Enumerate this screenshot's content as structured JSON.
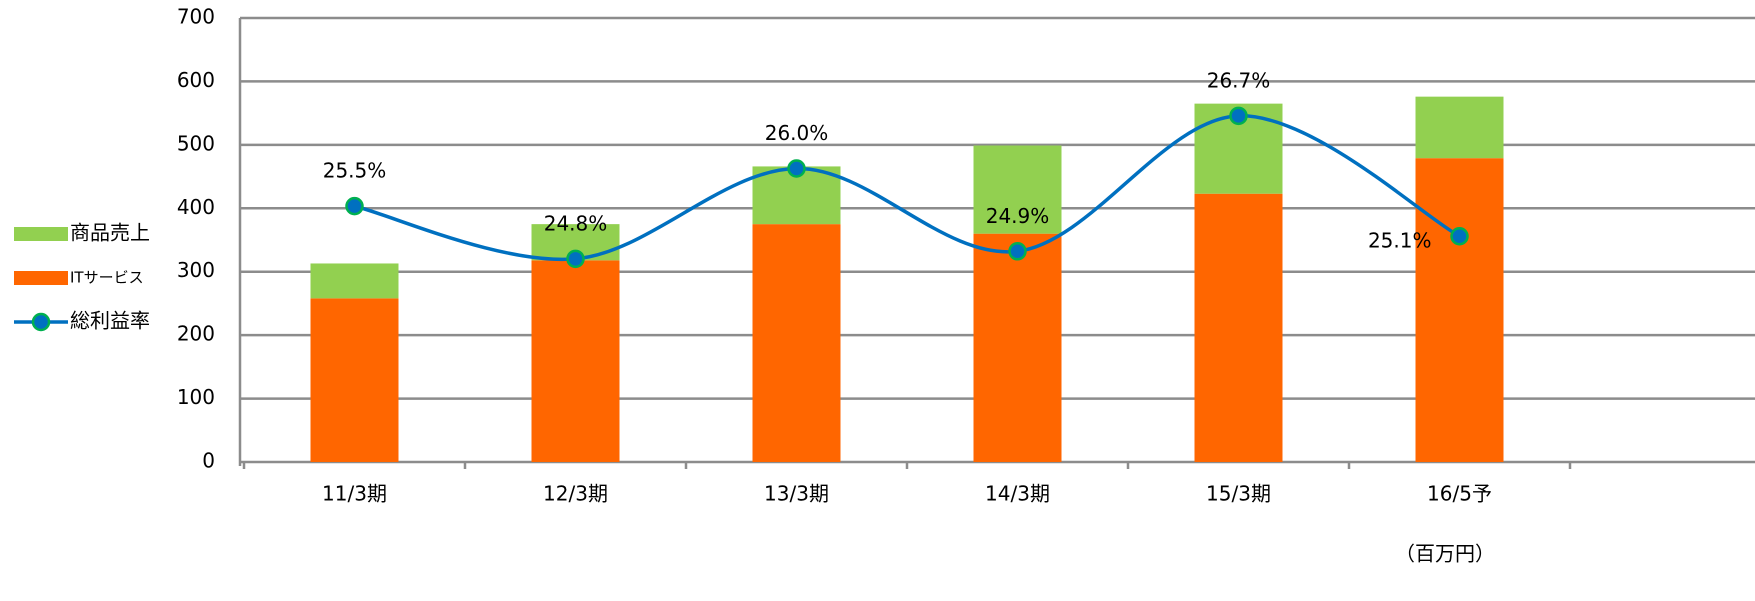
{
  "chart_data": {
    "type": "bar-line",
    "categories": [
      "11/3期",
      "12/3期",
      "13/3期",
      "14/3期",
      "15/3期",
      "16/5予"
    ],
    "series": [
      {
        "name": "ITサービス",
        "type": "bar",
        "color": "#ff6600",
        "values": [
          258,
          318,
          375,
          360,
          423,
          479
        ]
      },
      {
        "name": "商品売上",
        "type": "bar",
        "color": "#92d050",
        "values": [
          55,
          57,
          91,
          139,
          142,
          97
        ]
      },
      {
        "name": "総利益率",
        "type": "line",
        "axis": "y2",
        "color": "#0070c0",
        "marker_edge": "#00b050",
        "values": [
          25.5,
          24.8,
          26.0,
          24.9,
          26.7,
          25.1
        ],
        "value_labels": [
          "25.5%",
          "24.8%",
          "26.0%",
          "24.9%",
          "26.7%",
          "25.1%"
        ]
      }
    ],
    "ylim": [
      0,
      700
    ],
    "yticks": [
      0,
      100,
      200,
      300,
      400,
      500,
      600,
      700
    ],
    "y2lim": [
      22.1,
      28.0
    ],
    "unit_label": "（百万円）",
    "grid": true,
    "stacked": true,
    "smooth": true,
    "legend": "left"
  }
}
